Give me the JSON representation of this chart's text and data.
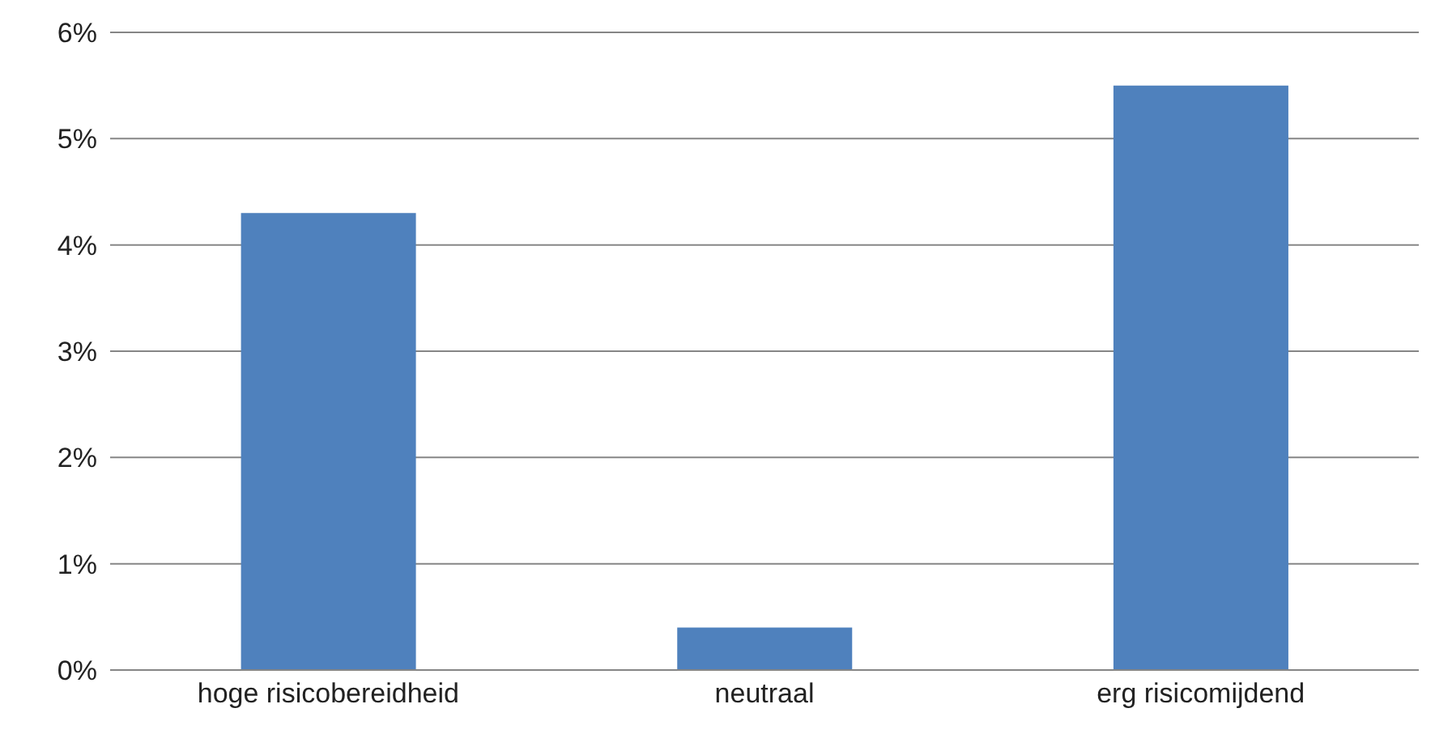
{
  "chart_data": {
    "type": "bar",
    "categories": [
      "hoge risicobereidheid",
      "neutraal",
      "erg risicomijdend"
    ],
    "values": [
      4.3,
      0.4,
      5.5
    ],
    "color": "#4f81bd",
    "ylim": [
      0,
      6
    ],
    "yticks": [
      {
        "value": 0,
        "label": "0%"
      },
      {
        "value": 1,
        "label": "1%"
      },
      {
        "value": 2,
        "label": "2%"
      },
      {
        "value": 3,
        "label": "3%"
      },
      {
        "value": 4,
        "label": "4%"
      },
      {
        "value": 5,
        "label": "5%"
      },
      {
        "value": 6,
        "label": "6%"
      }
    ],
    "grid": "y",
    "legend": false
  }
}
